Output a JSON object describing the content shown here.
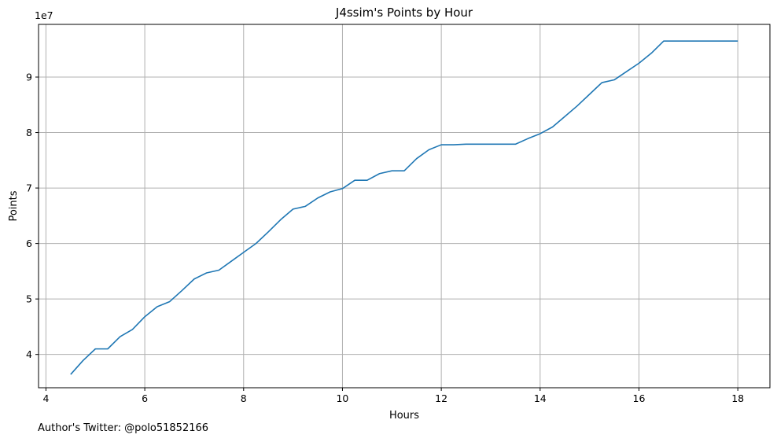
{
  "chart_data": {
    "type": "line",
    "title": "J4ssim's Points by Hour",
    "xlabel": "Hours",
    "ylabel": "Points",
    "y_offset_label": "1e7",
    "xlim": [
      3.85,
      18.65
    ],
    "ylim": [
      3.4,
      9.95
    ],
    "x_ticks": [
      4,
      6,
      8,
      10,
      12,
      14,
      16,
      18
    ],
    "y_ticks": [
      4,
      5,
      6,
      7,
      8,
      9
    ],
    "grid": true,
    "color": "#1f77b4",
    "series": [
      {
        "x": [
          4.5,
          4.75,
          5.0,
          5.25,
          5.5,
          5.75,
          6.0,
          6.25,
          6.5,
          6.75,
          7.0,
          7.25,
          7.5,
          7.75,
          8.0,
          8.25,
          8.5,
          8.75,
          9.0,
          9.25,
          9.5,
          9.75,
          10.0,
          10.25,
          10.5,
          10.75,
          11.0,
          11.25,
          11.5,
          11.75,
          12.0,
          12.25,
          12.5,
          12.75,
          13.0,
          13.25,
          13.5,
          13.75,
          14.0,
          14.25,
          14.5,
          14.75,
          15.0,
          15.25,
          15.5,
          15.75,
          16.0,
          16.25,
          16.5,
          16.75,
          17.0,
          17.25,
          17.5,
          17.75,
          18.0
        ],
        "values": [
          3.64,
          3.89,
          4.1,
          4.1,
          4.32,
          4.45,
          4.68,
          4.86,
          4.95,
          5.15,
          5.36,
          5.47,
          5.52,
          5.68,
          5.84,
          6.0,
          6.21,
          6.43,
          6.62,
          6.67,
          6.82,
          6.93,
          6.99,
          7.14,
          7.14,
          7.26,
          7.31,
          7.31,
          7.53,
          7.69,
          7.78,
          7.78,
          7.79,
          7.79,
          7.79,
          7.79,
          7.79,
          7.89,
          7.98,
          8.1,
          8.29,
          8.48,
          8.69,
          8.9,
          8.95,
          9.1,
          9.25,
          9.43,
          9.65,
          9.65,
          9.65,
          9.65,
          9.65,
          9.65,
          9.65
        ]
      }
    ]
  },
  "footnote": "Author's Twitter: @polo51852166"
}
